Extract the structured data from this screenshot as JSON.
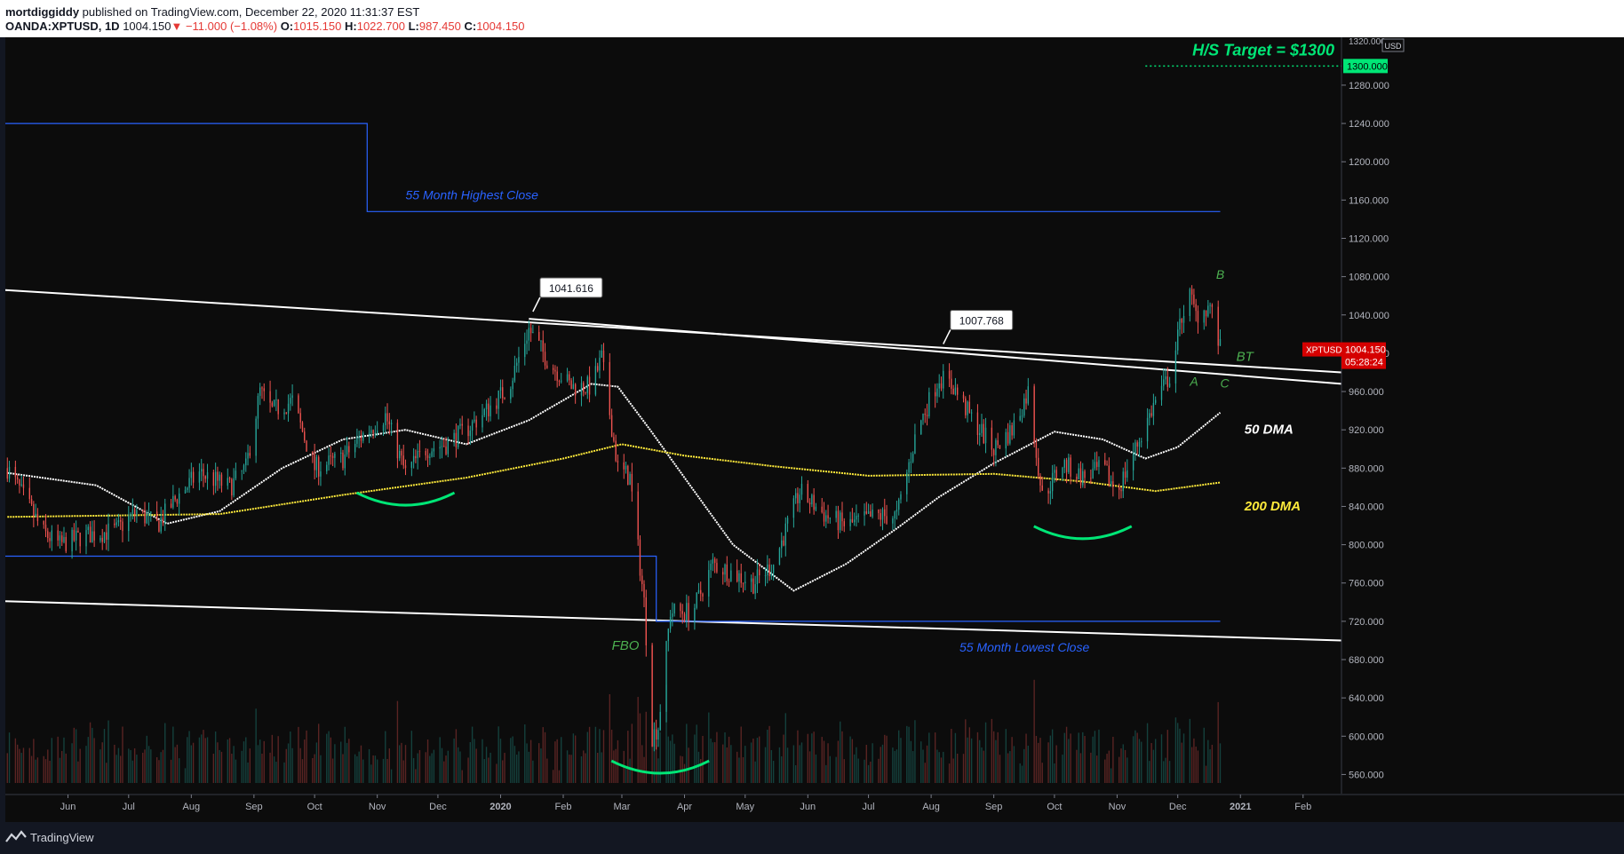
{
  "header": {
    "author": "mortdiggiddy",
    "published": "published on TradingView.com, December 22, 2020 11:31:37 EST",
    "symbol": "OANDA:XPTUSD, 1D",
    "last": "1004.150",
    "arrow": "▼",
    "change": "−11.000 (−1.08%)",
    "o_label": "O:",
    "o_val": "1015.150",
    "h_label": "H:",
    "h_val": "1022.700",
    "l_label": "L:",
    "l_val": "987.450",
    "c_label": "C:",
    "c_val": "1004.150"
  },
  "footer": {
    "brand": "TradingView"
  },
  "chart_data": {
    "type": "candlestick",
    "symbol": "XPTUSD",
    "interval": "1D",
    "currency": "USD",
    "ylim": [
      540,
      1330
    ],
    "y_ticks": [
      560,
      600,
      640,
      680,
      720,
      760,
      800,
      840,
      880,
      920,
      960,
      1000,
      1040,
      1080,
      1120,
      1160,
      1200,
      1240,
      1280
    ],
    "y_tick_labels": [
      "560.000",
      "600.000",
      "640.000",
      "680.000",
      "720.000",
      "760.000",
      "800.000",
      "840.000",
      "880.000",
      "920.000",
      "960.000",
      "1000.000",
      "1040.000",
      "1080.000",
      "1120.000",
      "1160.000",
      "1200.000",
      "1240.000",
      "1280.000"
    ],
    "x_range": [
      "2019-05-01",
      "2021-02-20"
    ],
    "x_ticks": [
      {
        "label": "Jun",
        "date": "2019-06-01"
      },
      {
        "label": "Jul",
        "date": "2019-07-01"
      },
      {
        "label": "Aug",
        "date": "2019-08-01"
      },
      {
        "label": "Sep",
        "date": "2019-09-01"
      },
      {
        "label": "Oct",
        "date": "2019-10-01"
      },
      {
        "label": "Nov",
        "date": "2019-11-01"
      },
      {
        "label": "Dec",
        "date": "2019-12-01"
      },
      {
        "label": "2020",
        "date": "2020-01-01"
      },
      {
        "label": "Feb",
        "date": "2020-02-01"
      },
      {
        "label": "Mar",
        "date": "2020-03-01"
      },
      {
        "label": "Apr",
        "date": "2020-04-01"
      },
      {
        "label": "May",
        "date": "2020-05-01"
      },
      {
        "label": "Jun",
        "date": "2020-06-01"
      },
      {
        "label": "Jul",
        "date": "2020-07-01"
      },
      {
        "label": "Aug",
        "date": "2020-08-01"
      },
      {
        "label": "Sep",
        "date": "2020-09-01"
      },
      {
        "label": "Oct",
        "date": "2020-10-01"
      },
      {
        "label": "Nov",
        "date": "2020-11-01"
      },
      {
        "label": "Dec",
        "date": "2020-12-01"
      },
      {
        "label": "2021",
        "date": "2021-01-01"
      },
      {
        "label": "Feb",
        "date": "2021-02-01"
      }
    ],
    "close_path": [
      [
        "2019-05-02",
        880
      ],
      [
        "2019-05-10",
        850
      ],
      [
        "2019-05-20",
        812
      ],
      [
        "2019-05-28",
        800
      ],
      [
        "2019-06-10",
        810
      ],
      [
        "2019-06-25",
        815
      ],
      [
        "2019-07-05",
        835
      ],
      [
        "2019-07-15",
        820
      ],
      [
        "2019-07-25",
        850
      ],
      [
        "2019-08-05",
        875
      ],
      [
        "2019-08-20",
        860
      ],
      [
        "2019-08-28",
        880
      ],
      [
        "2019-09-04",
        960
      ],
      [
        "2019-09-10",
        940
      ],
      [
        "2019-09-20",
        950
      ],
      [
        "2019-10-01",
        880
      ],
      [
        "2019-10-15",
        890
      ],
      [
        "2019-10-25",
        915
      ],
      [
        "2019-11-05",
        935
      ],
      [
        "2019-11-15",
        875
      ],
      [
        "2019-11-25",
        900
      ],
      [
        "2019-12-05",
        905
      ],
      [
        "2019-12-15",
        920
      ],
      [
        "2019-12-25",
        940
      ],
      [
        "2020-01-05",
        965
      ],
      [
        "2020-01-15",
        1025
      ],
      [
        "2020-01-25",
        990
      ],
      [
        "2020-02-05",
        965
      ],
      [
        "2020-02-15",
        965
      ],
      [
        "2020-02-20",
        995
      ],
      [
        "2020-02-28",
        880
      ],
      [
        "2020-03-05",
        870
      ],
      [
        "2020-03-12",
        740
      ],
      [
        "2020-03-16",
        600
      ],
      [
        "2020-03-19",
        610
      ],
      [
        "2020-03-25",
        730
      ],
      [
        "2020-04-05",
        730
      ],
      [
        "2020-04-15",
        780
      ],
      [
        "2020-04-25",
        770
      ],
      [
        "2020-05-05",
        760
      ],
      [
        "2020-05-15",
        780
      ],
      [
        "2020-05-28",
        855
      ],
      [
        "2020-06-10",
        830
      ],
      [
        "2020-06-20",
        820
      ],
      [
        "2020-07-05",
        830
      ],
      [
        "2020-07-15",
        830
      ],
      [
        "2020-07-25",
        920
      ],
      [
        "2020-08-05",
        975
      ],
      [
        "2020-08-12",
        965
      ],
      [
        "2020-08-20",
        935
      ],
      [
        "2020-09-01",
        900
      ],
      [
        "2020-09-10",
        920
      ],
      [
        "2020-09-18",
        960
      ],
      [
        "2020-09-25",
        850
      ],
      [
        "2020-10-05",
        885
      ],
      [
        "2020-10-15",
        870
      ],
      [
        "2020-10-25",
        880
      ],
      [
        "2020-11-01",
        855
      ],
      [
        "2020-11-10",
        900
      ],
      [
        "2020-11-20",
        950
      ],
      [
        "2020-11-28",
        980
      ],
      [
        "2020-12-03",
        1040
      ],
      [
        "2020-12-07",
        1060
      ],
      [
        "2020-12-10",
        1040
      ],
      [
        "2020-12-17",
        1050
      ],
      [
        "2020-12-22",
        1004
      ]
    ],
    "series": [
      {
        "name": "50 DMA",
        "color": "#ffffff",
        "values": [
          [
            "2019-05-02",
            875
          ],
          [
            "2019-06-15",
            862
          ],
          [
            "2019-07-20",
            822
          ],
          [
            "2019-08-15",
            835
          ],
          [
            "2019-09-15",
            880
          ],
          [
            "2019-10-15",
            910
          ],
          [
            "2019-11-15",
            920
          ],
          [
            "2019-12-15",
            905
          ],
          [
            "2020-01-15",
            930
          ],
          [
            "2020-02-15",
            968
          ],
          [
            "2020-02-28",
            965
          ],
          [
            "2020-03-15",
            920
          ],
          [
            "2020-04-01",
            870
          ],
          [
            "2020-04-25",
            800
          ],
          [
            "2020-05-25",
            752
          ],
          [
            "2020-06-20",
            780
          ],
          [
            "2020-07-15",
            817
          ],
          [
            "2020-08-05",
            850
          ],
          [
            "2020-09-01",
            885
          ],
          [
            "2020-10-01",
            918
          ],
          [
            "2020-10-25",
            910
          ],
          [
            "2020-11-15",
            890
          ],
          [
            "2020-12-01",
            902
          ],
          [
            "2020-12-22",
            938
          ]
        ]
      },
      {
        "name": "200 DMA",
        "color": "#ffeb3b",
        "values": [
          [
            "2019-05-02",
            829
          ],
          [
            "2019-08-15",
            832
          ],
          [
            "2019-10-15",
            852
          ],
          [
            "2019-12-15",
            870
          ],
          [
            "2020-02-01",
            890
          ],
          [
            "2020-03-01",
            905
          ],
          [
            "2020-04-01",
            893
          ],
          [
            "2020-05-15",
            882
          ],
          [
            "2020-07-01",
            872
          ],
          [
            "2020-09-01",
            874
          ],
          [
            "2020-10-15",
            866
          ],
          [
            "2020-11-20",
            856
          ],
          [
            "2020-12-22",
            865
          ]
        ]
      }
    ],
    "annotations": [
      {
        "type": "line",
        "name": "channel-top",
        "from": [
          "2019-05-01",
          1066
        ],
        "to": [
          "2021-02-20",
          980
        ],
        "color": "#ffffff"
      },
      {
        "type": "line",
        "name": "channel-top-2",
        "from": [
          "2020-01-15",
          1036
        ],
        "to": [
          "2021-02-20",
          968
        ],
        "color": "#ffffff"
      },
      {
        "type": "line",
        "name": "channel-bottom",
        "from": [
          "2019-05-01",
          741
        ],
        "to": [
          "2021-02-20",
          700
        ],
        "color": "#ffffff"
      },
      {
        "type": "step",
        "name": "55-month-highest",
        "points": [
          [
            "2019-05-01",
            1240
          ],
          [
            "2019-10-27",
            1240
          ],
          [
            "2019-10-27",
            1148
          ],
          [
            "2020-12-22",
            1148
          ]
        ],
        "color": "#2962ff",
        "label": "55 Month Highest Close"
      },
      {
        "type": "step",
        "name": "55-month-lowest",
        "points": [
          [
            "2019-05-01",
            788
          ],
          [
            "2020-03-18",
            788
          ],
          [
            "2020-03-18",
            720
          ],
          [
            "2020-12-22",
            720
          ]
        ],
        "color": "#2962ff",
        "label": "55 Month Lowest Close"
      },
      {
        "type": "hline",
        "name": "hs-target",
        "y": 1300,
        "from": "2020-11-15",
        "to": "2021-02-20",
        "color": "#00e676",
        "label": "H/S Target = $1300"
      },
      {
        "type": "callout",
        "name": "peak-1",
        "at": [
          "2020-01-17",
          1041.616
        ],
        "label": "1041.616"
      },
      {
        "type": "callout",
        "name": "peak-2",
        "at": [
          "2020-08-07",
          1007.768
        ],
        "label": "1007.768"
      }
    ],
    "labels": [
      {
        "text": "50 DMA",
        "color": "#ffffff"
      },
      {
        "text": "200 DMA",
        "color": "#ffeb3b"
      },
      {
        "text": "FBO",
        "color": "#4caf50"
      },
      {
        "text": "BT",
        "color": "#4caf50"
      },
      {
        "text": "A",
        "color": "#4caf50"
      },
      {
        "text": "B",
        "color": "#4caf50"
      },
      {
        "text": "C",
        "color": "#4caf50"
      }
    ],
    "price_badges": {
      "target_value": "1300.000",
      "current_symbol": "XPTUSD",
      "current_value": "1004.150",
      "countdown": "05:28:24",
      "currency": "USD",
      "top_value": "1320.000"
    },
    "colors": {
      "up": "#26a69a",
      "down": "#ef5350",
      "target": "#00e676",
      "current": "#d50000"
    }
  }
}
